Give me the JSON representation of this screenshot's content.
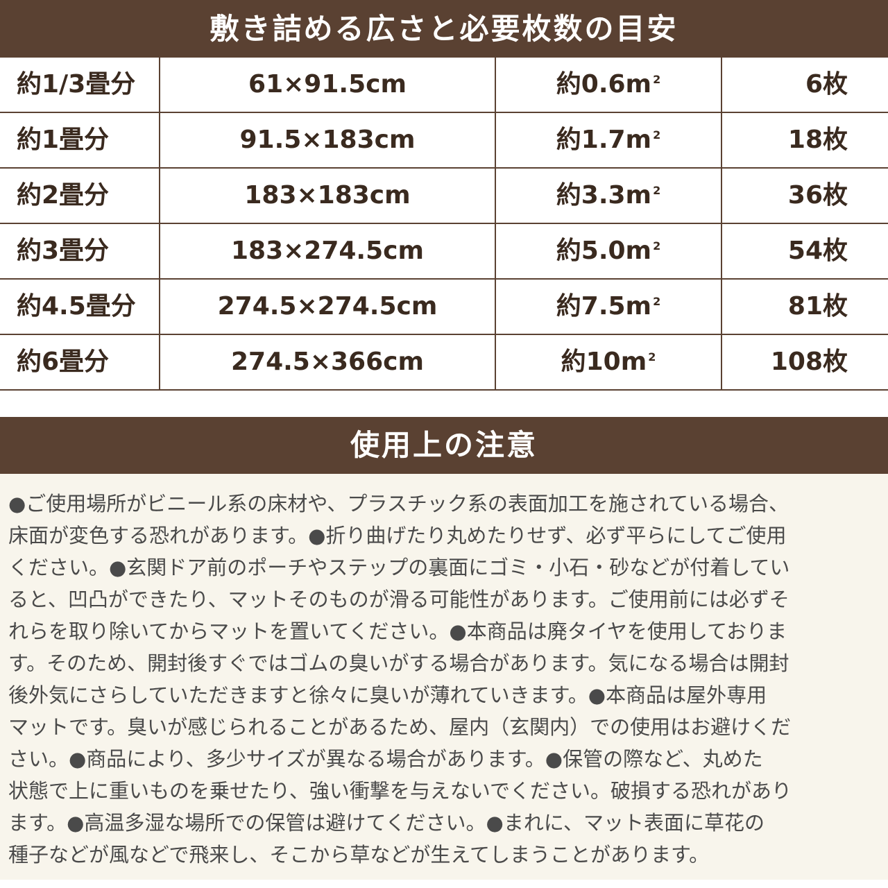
{
  "coverage": {
    "title": "敷き詰める広さと必要枚数の目安",
    "rows": [
      {
        "tatami": "約1/3畳分",
        "size": "61×91.5cm",
        "area": "約0.6m",
        "unit": "2",
        "count": "6枚"
      },
      {
        "tatami": "約1畳分",
        "size": "91.5×183cm",
        "area": "約1.7m",
        "unit": "2",
        "count": "18枚"
      },
      {
        "tatami": "約2畳分",
        "size": "183×183cm",
        "area": "約3.3m",
        "unit": "2",
        "count": "36枚"
      },
      {
        "tatami": "約3畳分",
        "size": "183×274.5cm",
        "area": "約5.0m",
        "unit": "2",
        "count": "54枚"
      },
      {
        "tatami": "約4.5畳分",
        "size": "274.5×274.5cm",
        "area": "約7.5m",
        "unit": "2",
        "count": "81枚"
      },
      {
        "tatami": "約6畳分",
        "size": "274.5×366cm",
        "area": "約10m",
        "unit": "2",
        "count": "108枚"
      }
    ]
  },
  "notes": {
    "title": "使用上の注意",
    "lines": [
      "●ご使用場所がビニール系の床材や、プラスチック系の表面加工を施されている場合、",
      "床面が変色する恐れがあります。●折り曲げたり丸めたりせず、必ず平らにしてご使用",
      "ください。●玄関ドア前のポーチやステップの裏面にゴミ・小石・砂などが付着してい",
      "ると、凹凸ができたり、マットそのものが滑る可能性があります。ご使用前には必ずそ",
      "れらを取り除いてからマットを置いてください。●本商品は廃タイヤを使用しておりま",
      "す。そのため、開封後すぐではゴムの臭いがする場合があります。気になる場合は開封",
      "後外気にさらしていただきますと徐々に臭いが薄れていきます。●本商品は屋外専用",
      "マットです。臭いが感じられることがあるため、屋内（玄関内）での使用はお避けくだ",
      "さい。●商品により、多少サイズが異なる場合があります。●保管の際など、丸めた",
      "状態で上に重いものを乗せたり、強い衝撃を与えないでください。破損する恐れがあり",
      "ます。●高温多湿な場所での保管は避けてください。●まれに、マット表面に草花の",
      "種子などが風などで飛来し、そこから草などが生えてしまうことがあります。"
    ]
  },
  "colors": {
    "banner": "#5a4132",
    "notes_bg": "#f8f5ec",
    "text": "#3a2a1f"
  }
}
